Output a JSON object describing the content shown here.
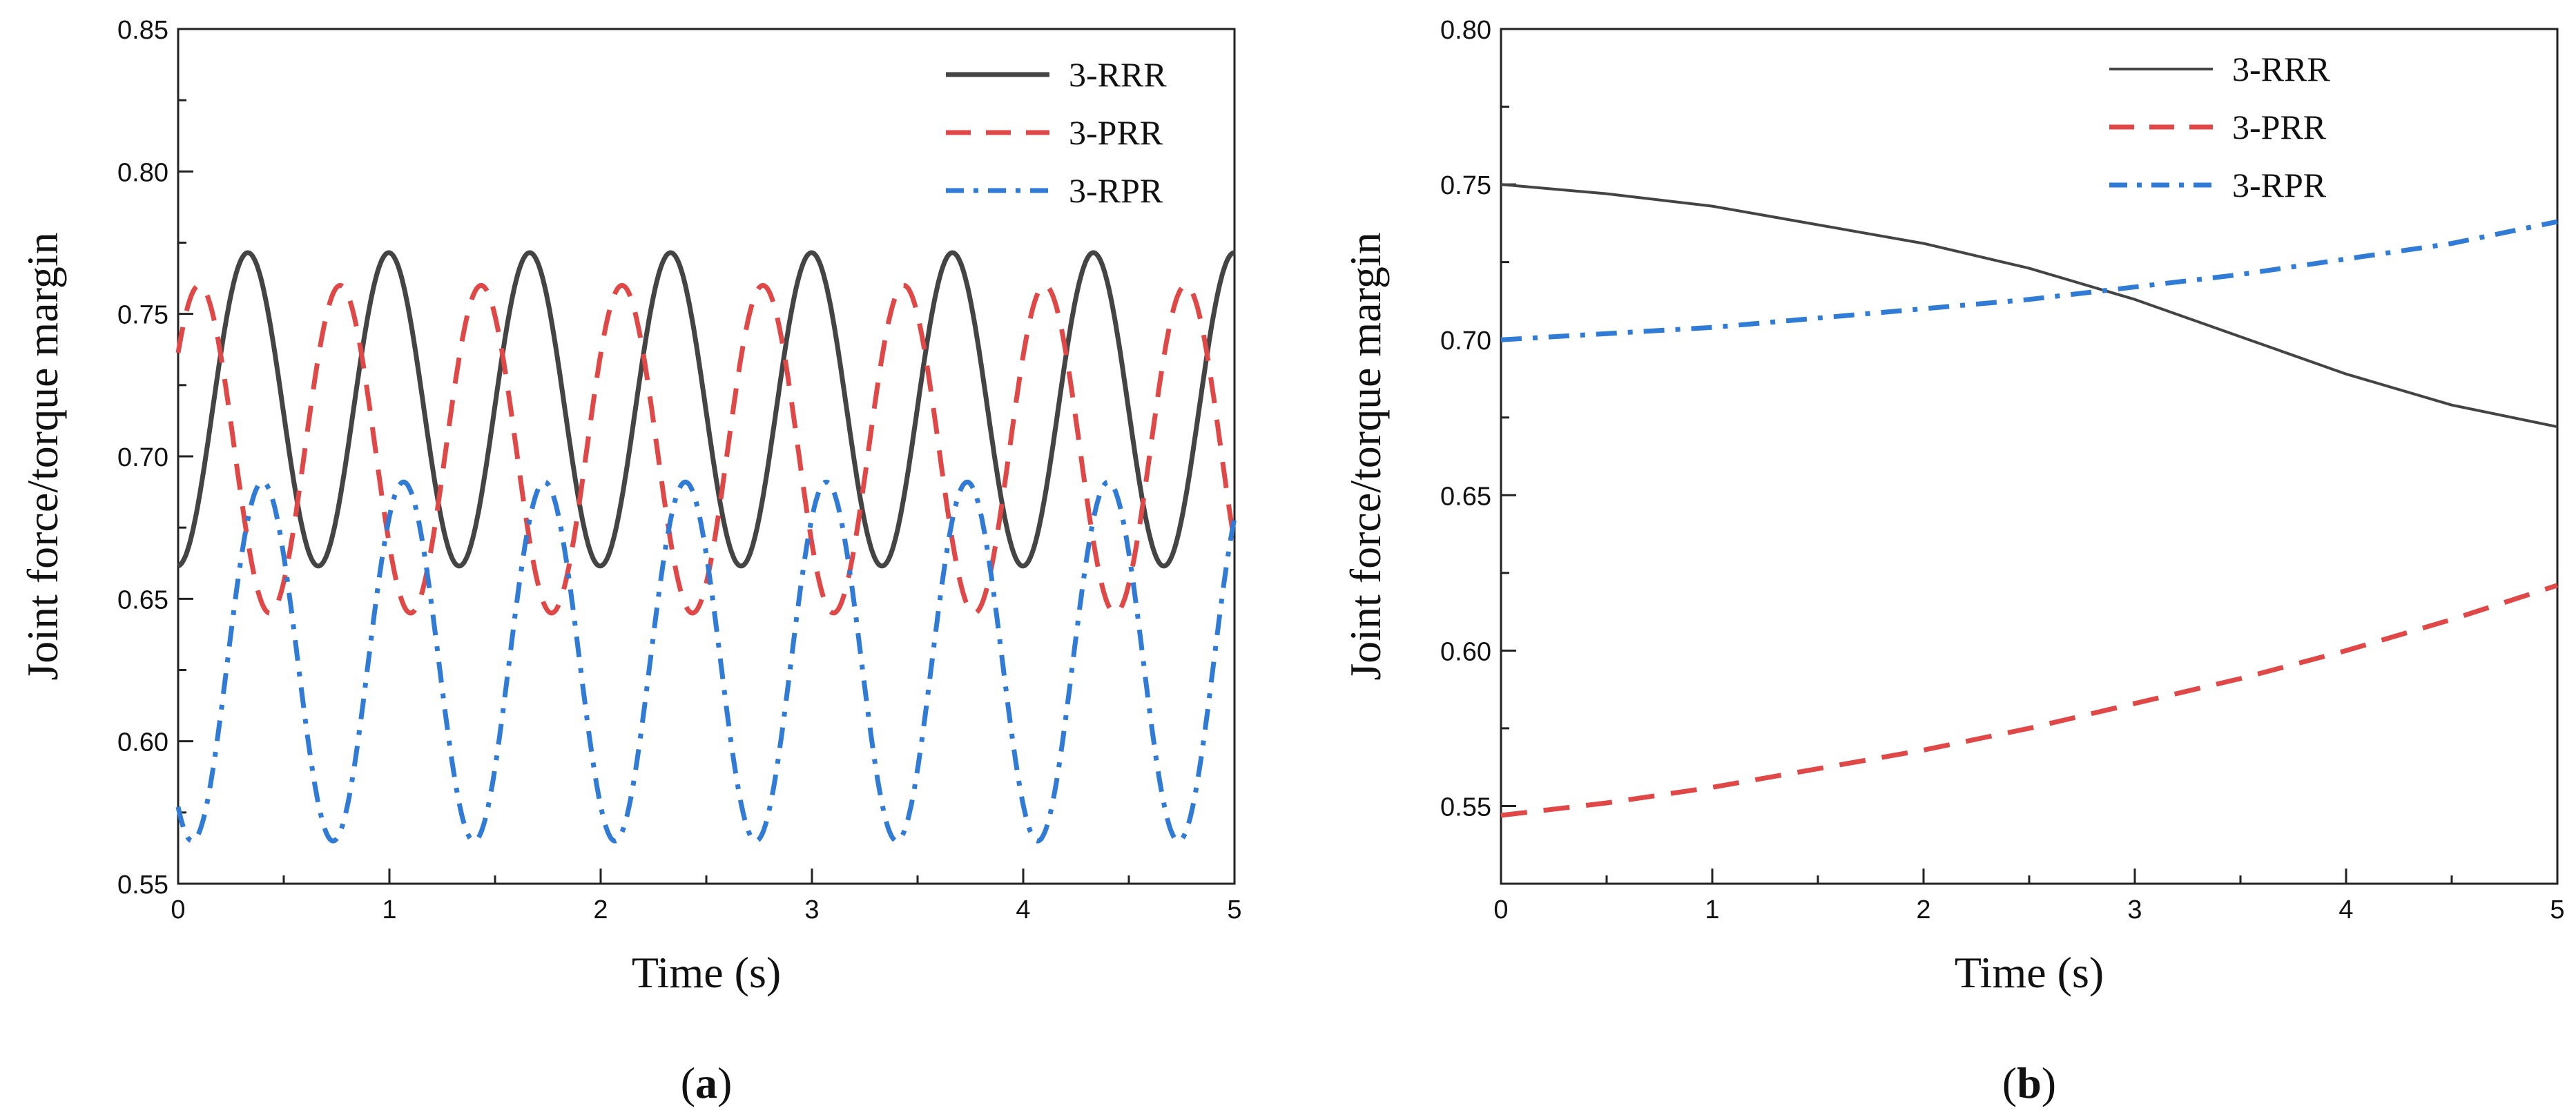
{
  "chart_data": [
    {
      "id": "a",
      "type": "line",
      "panel_label": "a",
      "xlabel": "Time (s)",
      "ylabel": "Joint force/torque margin",
      "xlim": [
        0,
        5
      ],
      "ylim": [
        0.55,
        0.85
      ],
      "xticks": [
        0,
        1,
        2,
        3,
        4,
        5
      ],
      "yticks": [
        0.55,
        0.6,
        0.65,
        0.7,
        0.75,
        0.8,
        0.85
      ],
      "ytick_labels": [
        "0.55",
        "0.60",
        "0.65",
        "0.70",
        "0.75",
        "0.80",
        "0.85"
      ],
      "xtick_labels": [
        "0",
        "1",
        "2",
        "3",
        "4",
        "5"
      ],
      "legend_position": "top-right",
      "series": [
        {
          "name": "3-RRR",
          "color": "#444444",
          "style": "solid",
          "width": "thick",
          "model": "sine",
          "offset": 0.7165,
          "amplitude": 0.055,
          "period": 0.667,
          "peak_time": 0.33
        },
        {
          "name": "3-PRR",
          "color": "#e04848",
          "style": "dashed",
          "width": "thick",
          "model": "sine",
          "offset": 0.7025,
          "amplitude": 0.0575,
          "period": 0.667,
          "peak_time": 0.1
        },
        {
          "name": "3-RPR",
          "color": "#2f7bd6",
          "style": "dashdot",
          "width": "thick",
          "model": "sine",
          "offset": 0.628,
          "amplitude": 0.063,
          "period": 0.667,
          "peak_time": 0.4
        }
      ]
    },
    {
      "id": "b",
      "type": "line",
      "panel_label": "b",
      "xlabel": "Time (s)",
      "ylabel": "Joint force/torque margin",
      "xlim": [
        0,
        5
      ],
      "ylim": [
        0.525,
        0.8
      ],
      "xticks": [
        0,
        1,
        2,
        3,
        4,
        5
      ],
      "yticks": [
        0.55,
        0.6,
        0.65,
        0.7,
        0.75,
        0.8
      ],
      "ytick_labels": [
        "0.55",
        "0.60",
        "0.65",
        "0.70",
        "0.75",
        "0.80"
      ],
      "xtick_labels": [
        "0",
        "1",
        "2",
        "3",
        "4",
        "5"
      ],
      "legend_position": "top-right",
      "series": [
        {
          "name": "3-RRR",
          "color": "#444444",
          "style": "solid",
          "width": "thin",
          "x": [
            0,
            0.5,
            1,
            1.5,
            2,
            2.5,
            3,
            3.5,
            4,
            4.5,
            5
          ],
          "values": [
            0.75,
            0.747,
            0.743,
            0.737,
            0.731,
            0.723,
            0.713,
            0.701,
            0.689,
            0.679,
            0.672
          ]
        },
        {
          "name": "3-PRR",
          "color": "#e04848",
          "style": "dashed",
          "width": "thick",
          "x": [
            0,
            0.5,
            1,
            1.5,
            2,
            2.5,
            3,
            3.5,
            4,
            4.5,
            5
          ],
          "values": [
            0.547,
            0.551,
            0.556,
            0.562,
            0.568,
            0.575,
            0.583,
            0.591,
            0.6,
            0.61,
            0.621
          ]
        },
        {
          "name": "3-RPR",
          "color": "#2f7bd6",
          "style": "dashdot",
          "width": "thick",
          "x": [
            0,
            0.5,
            1,
            1.5,
            2,
            2.5,
            3,
            3.5,
            4,
            4.5,
            5
          ],
          "values": [
            0.7,
            0.702,
            0.704,
            0.707,
            0.71,
            0.713,
            0.717,
            0.721,
            0.726,
            0.731,
            0.738
          ]
        }
      ]
    }
  ]
}
